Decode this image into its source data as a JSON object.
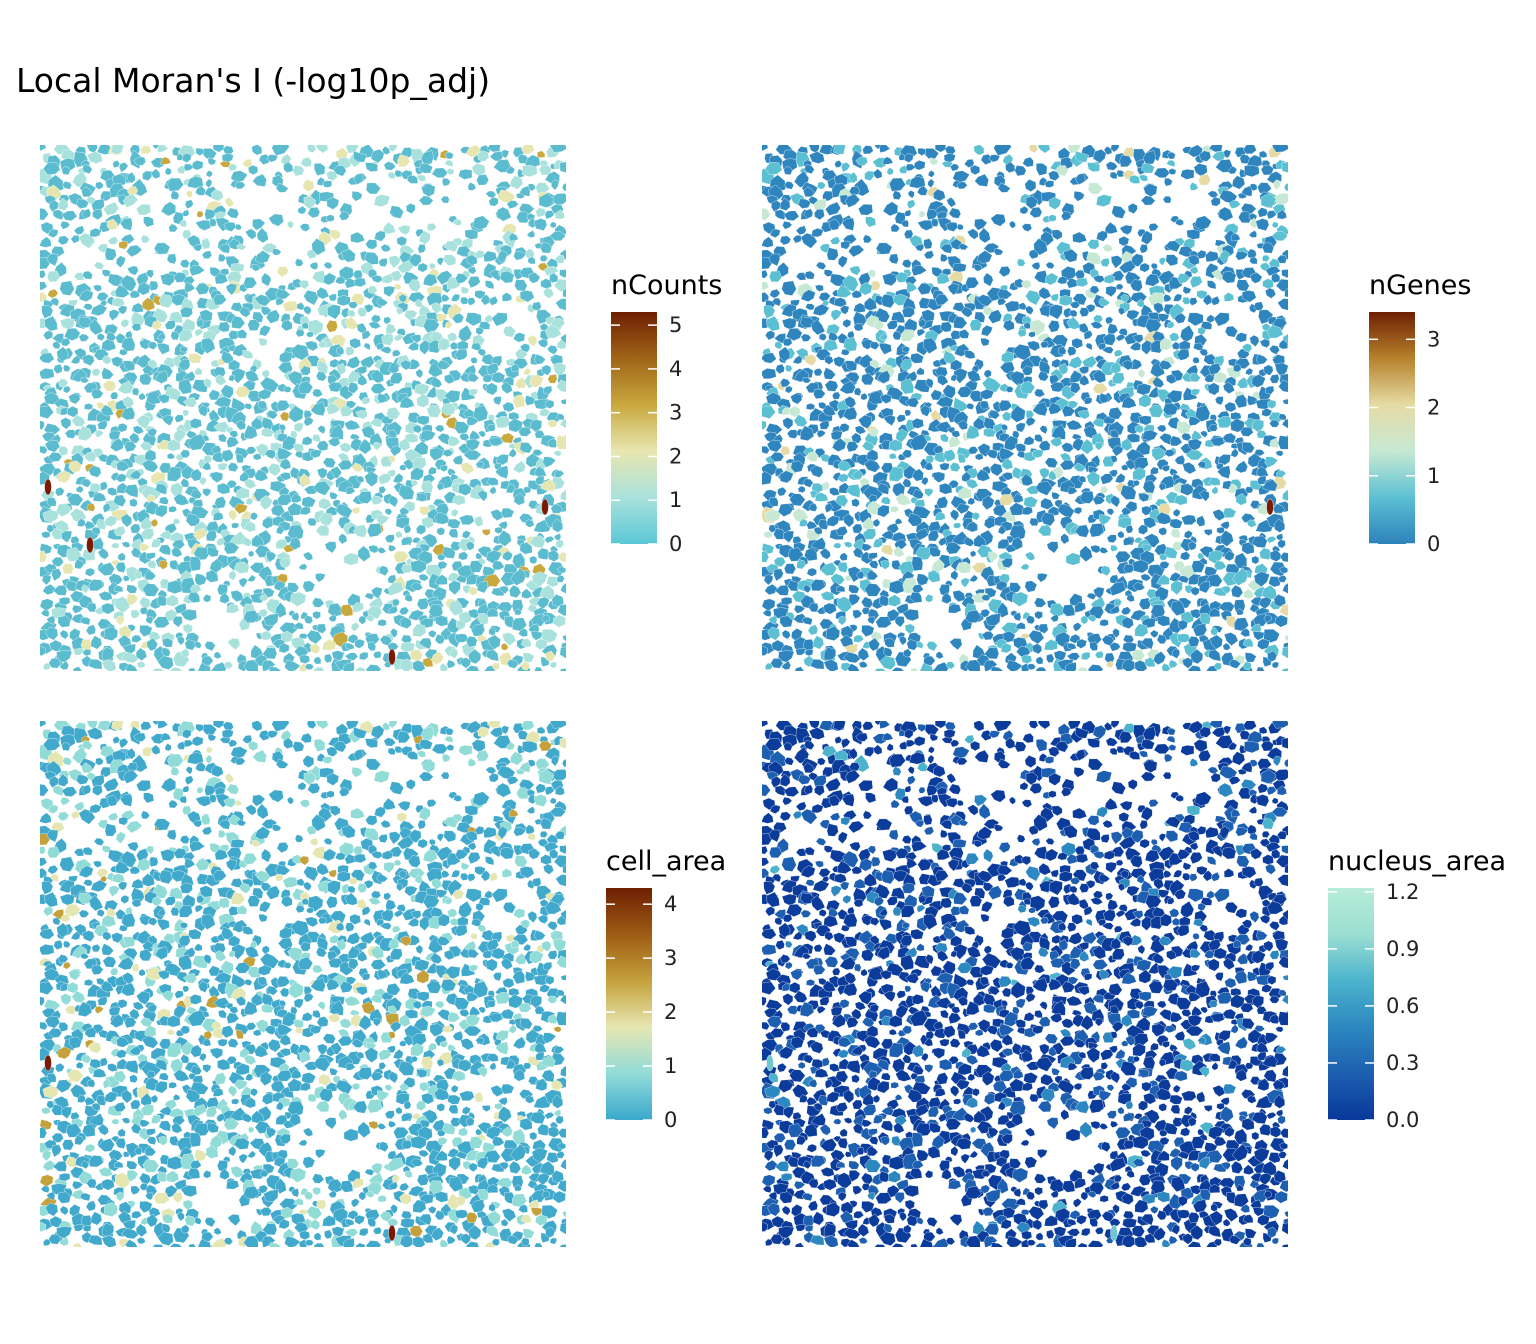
{
  "title": "Local Moran's I (-log10p_adj)",
  "chart_data": [
    {
      "type": "heatmap",
      "subtype": "spatial cell polygons",
      "variable": "nCounts",
      "legend_title": "nCounts",
      "range": [
        0,
        5.3
      ],
      "ticks": [
        0,
        1,
        2,
        3,
        4,
        5
      ],
      "tick_labels": [
        "0",
        "1",
        "2",
        "3",
        "4",
        "5"
      ],
      "palette": [
        "#5bc7d6",
        "#a9e2dc",
        "#e8e6b0",
        "#c9a83e",
        "#a06418",
        "#6e1f02"
      ],
      "background_color": "#5bbccf",
      "hotspot_color": "#7a1a05"
    },
    {
      "type": "heatmap",
      "subtype": "spatial cell polygons",
      "variable": "nGenes",
      "legend_title": "nGenes",
      "range": [
        0,
        3.4
      ],
      "ticks": [
        0,
        1,
        2,
        3
      ],
      "tick_labels": [
        "0",
        "1",
        "2",
        "3"
      ],
      "palette": [
        "#2c82bb",
        "#5cc0d3",
        "#c7e9d3",
        "#e6dba5",
        "#b6822c",
        "#6e1f02"
      ],
      "background_color": "#2f86bf",
      "hotspot_color": "#7a1a05"
    },
    {
      "type": "heatmap",
      "subtype": "spatial cell polygons",
      "variable": "cell_area",
      "legend_title": "cell_area",
      "range": [
        0,
        4.3
      ],
      "ticks": [
        0,
        1,
        2,
        3,
        4
      ],
      "tick_labels": [
        "0",
        "1",
        "2",
        "3",
        "4"
      ],
      "palette": [
        "#3aa8cc",
        "#92dcd8",
        "#e6e6b2",
        "#c5a13c",
        "#9d5c14",
        "#6e1f02"
      ],
      "background_color": "#40a9cc",
      "hotspot_color": "#7a1a05"
    },
    {
      "type": "heatmap",
      "subtype": "spatial cell polygons",
      "variable": "nucleus_area",
      "legend_title": "nucleus_area",
      "range": [
        0,
        1.22
      ],
      "ticks": [
        0,
        0.3,
        0.6,
        0.9,
        1.2
      ],
      "tick_labels": [
        "0.0",
        "0.3",
        "0.6",
        "0.9",
        "1.2"
      ],
      "palette": [
        "#08389a",
        "#1d5fb0",
        "#2c88c0",
        "#4cb3cc",
        "#9adfd2",
        "#b8ecd8"
      ],
      "background_color": "#0b3c9c",
      "hotspot_color": "#6fc7cf"
    }
  ]
}
